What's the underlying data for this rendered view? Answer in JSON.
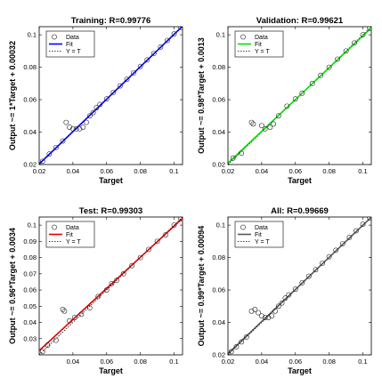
{
  "chart_data": [
    {
      "type": "scatter",
      "title": "Training: R=0.99776",
      "xlabel": "Target",
      "ylabel": "Output ~= 1*Target + 0.00032",
      "xlim": [
        0.02,
        0.105
      ],
      "ylim": [
        0.02,
        0.105
      ],
      "xticks": [
        "0.02",
        "0.04",
        "0.06",
        "0.08",
        "0.1"
      ],
      "yticks": [
        "0.02",
        "0.04",
        "0.06",
        "0.08",
        "0.1"
      ],
      "fit_color": "#0000ff",
      "fit": {
        "slope": 1.0,
        "intercept": 0.00032
      },
      "legend": {
        "position": "top-left",
        "entries": [
          "Data",
          "Fit",
          "Y = T"
        ]
      },
      "series": [
        {
          "points": [
            [
              0.022,
              0.022
            ],
            [
              0.026,
              0.0265
            ],
            [
              0.03,
              0.0305
            ],
            [
              0.034,
              0.0345
            ],
            [
              0.036,
              0.046
            ],
            [
              0.038,
              0.043
            ],
            [
              0.04,
              0.042
            ],
            [
              0.042,
              0.042
            ],
            [
              0.044,
              0.042
            ],
            [
              0.046,
              0.043
            ],
            [
              0.048,
              0.046
            ],
            [
              0.05,
              0.05
            ],
            [
              0.052,
              0.052
            ],
            [
              0.054,
              0.055
            ],
            [
              0.056,
              0.057
            ],
            [
              0.06,
              0.0605
            ],
            [
              0.064,
              0.0645
            ],
            [
              0.068,
              0.0685
            ],
            [
              0.072,
              0.0725
            ],
            [
              0.076,
              0.0765
            ],
            [
              0.08,
              0.0805
            ],
            [
              0.084,
              0.0845
            ],
            [
              0.088,
              0.0885
            ],
            [
              0.092,
              0.0925
            ],
            [
              0.096,
              0.0965
            ],
            [
              0.1,
              0.1005
            ],
            [
              0.104,
              0.1045
            ]
          ]
        }
      ]
    },
    {
      "type": "scatter",
      "title": "Validation: R=0.99621",
      "xlabel": "Target",
      "ylabel": "Output ~= 0.98*Target + 0.0013",
      "xlim": [
        0.02,
        0.105
      ],
      "ylim": [
        0.02,
        0.105
      ],
      "xticks": [
        "0.02",
        "0.04",
        "0.06",
        "0.08",
        "0.1"
      ],
      "yticks": [
        "0.02",
        "0.04",
        "0.06",
        "0.08",
        "0.1"
      ],
      "fit_color": "#00e000",
      "fit": {
        "slope": 0.98,
        "intercept": 0.0013
      },
      "legend": {
        "position": "top-left",
        "entries": [
          "Data",
          "Fit",
          "Y = T"
        ]
      },
      "series": [
        {
          "points": [
            [
              0.023,
              0.024
            ],
            [
              0.028,
              0.027
            ],
            [
              0.034,
              0.046
            ],
            [
              0.035,
              0.045
            ],
            [
              0.04,
              0.044
            ],
            [
              0.042,
              0.042
            ],
            [
              0.045,
              0.043
            ],
            [
              0.047,
              0.045
            ],
            [
              0.05,
              0.05
            ],
            [
              0.055,
              0.056
            ],
            [
              0.06,
              0.0605
            ],
            [
              0.064,
              0.064
            ],
            [
              0.07,
              0.07
            ],
            [
              0.075,
              0.075
            ],
            [
              0.08,
              0.08
            ],
            [
              0.085,
              0.085
            ],
            [
              0.09,
              0.09
            ],
            [
              0.095,
              0.095
            ],
            [
              0.1,
              0.1
            ],
            [
              0.104,
              0.104
            ]
          ]
        }
      ]
    },
    {
      "type": "scatter",
      "title": "Test: R=0.99303",
      "xlabel": "Target",
      "ylabel": "Output ~= 0.96*Target + 0.0034",
      "xlim": [
        0.02,
        0.105
      ],
      "ylim": [
        0.02,
        0.105
      ],
      "xticks": [
        "0.04",
        "0.06",
        "0.08",
        "0.1"
      ],
      "yticks": [
        "0.03",
        "0.04",
        "0.05",
        "0.06",
        "0.07",
        "0.08",
        "0.09",
        "0.1"
      ],
      "fit_color": "#e00000",
      "fit": {
        "slope": 0.96,
        "intercept": 0.0034
      },
      "legend": {
        "position": "top-left",
        "entries": [
          "Data",
          "Fit",
          "Y = T"
        ]
      },
      "series": [
        {
          "points": [
            [
              0.022,
              0.022
            ],
            [
              0.025,
              0.026
            ],
            [
              0.03,
              0.029
            ],
            [
              0.034,
              0.048
            ],
            [
              0.035,
              0.047
            ],
            [
              0.038,
              0.041
            ],
            [
              0.041,
              0.043
            ],
            [
              0.045,
              0.045
            ],
            [
              0.05,
              0.049
            ],
            [
              0.055,
              0.056
            ],
            [
              0.06,
              0.06
            ],
            [
              0.063,
              0.064
            ],
            [
              0.066,
              0.066
            ],
            [
              0.07,
              0.07
            ],
            [
              0.075,
              0.075
            ],
            [
              0.08,
              0.08
            ],
            [
              0.085,
              0.085
            ],
            [
              0.09,
              0.09
            ],
            [
              0.095,
              0.094
            ],
            [
              0.1,
              0.1
            ],
            [
              0.104,
              0.104
            ]
          ]
        }
      ]
    },
    {
      "type": "scatter",
      "title": "All: R=0.99669",
      "xlabel": "Target",
      "ylabel": "Output ~= 0.99*Target + 0.00094",
      "xlim": [
        0.02,
        0.105
      ],
      "ylim": [
        0.02,
        0.105
      ],
      "xticks": [
        "0.02",
        "0.04",
        "0.06",
        "0.08",
        "0.1"
      ],
      "yticks": [
        "0.02",
        "0.04",
        "0.06",
        "0.08",
        "0.1"
      ],
      "fit_color": "#555555",
      "fit": {
        "slope": 0.99,
        "intercept": 0.00094
      },
      "legend": {
        "position": "top-left",
        "entries": [
          "Data",
          "Fit",
          "Y = T"
        ]
      },
      "series": [
        {
          "points": [
            [
              0.022,
              0.022
            ],
            [
              0.025,
              0.025
            ],
            [
              0.028,
              0.028
            ],
            [
              0.031,
              0.031
            ],
            [
              0.034,
              0.047
            ],
            [
              0.036,
              0.048
            ],
            [
              0.038,
              0.046
            ],
            [
              0.04,
              0.044
            ],
            [
              0.042,
              0.043
            ],
            [
              0.044,
              0.043
            ],
            [
              0.046,
              0.044
            ],
            [
              0.048,
              0.047
            ],
            [
              0.05,
              0.05
            ],
            [
              0.052,
              0.052
            ],
            [
              0.054,
              0.055
            ],
            [
              0.056,
              0.057
            ],
            [
              0.06,
              0.0605
            ],
            [
              0.064,
              0.0645
            ],
            [
              0.068,
              0.0685
            ],
            [
              0.072,
              0.0725
            ],
            [
              0.076,
              0.0765
            ],
            [
              0.08,
              0.0805
            ],
            [
              0.084,
              0.0845
            ],
            [
              0.088,
              0.0885
            ],
            [
              0.092,
              0.0925
            ],
            [
              0.096,
              0.0965
            ],
            [
              0.1,
              0.1005
            ],
            [
              0.104,
              0.1045
            ]
          ]
        }
      ]
    }
  ]
}
